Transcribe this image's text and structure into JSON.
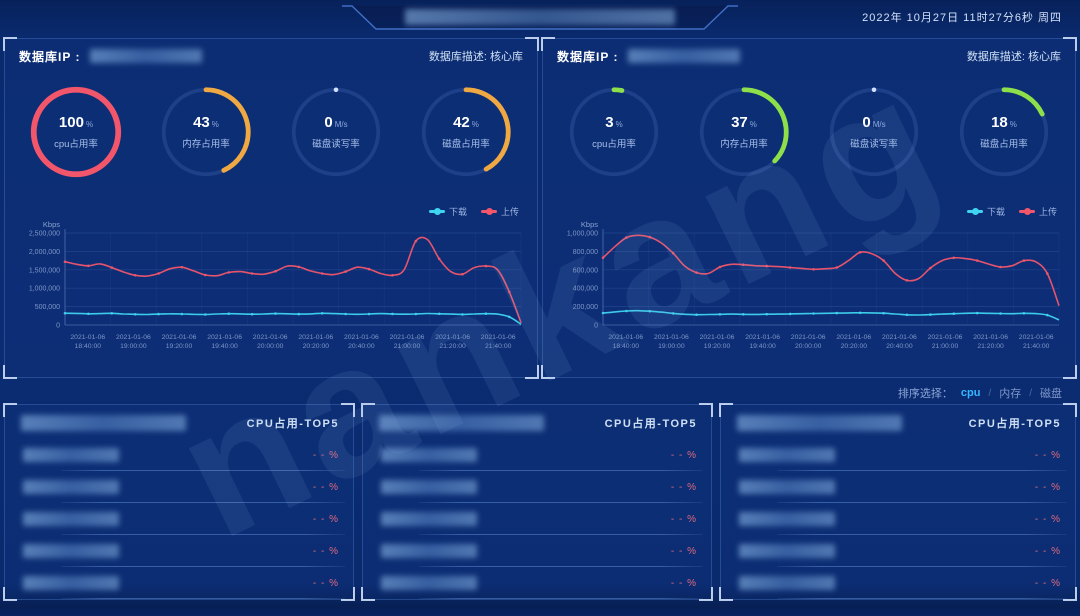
{
  "header": {
    "datetime": "2022年  10月27日  11时27分6秒  周四",
    "title_redacted": ""
  },
  "watermark": "nankang",
  "panels": [
    {
      "ip_label": "数据库IP :",
      "desc_label": "数据库描述: 核心库",
      "gauges": [
        {
          "value": "100",
          "unit": "%",
          "label": "cpu占用率",
          "percent": 100,
          "color": "#f2566b"
        },
        {
          "value": "43",
          "unit": "%",
          "label": "内存占用率",
          "percent": 43,
          "color": "#f0a843"
        },
        {
          "value": "0",
          "unit": "M/s",
          "label": "磁盘读写率",
          "percent": 0,
          "color": "#cfe0ff"
        },
        {
          "value": "42",
          "unit": "%",
          "label": "磁盘占用率",
          "percent": 42,
          "color": "#f0a843"
        }
      ]
    },
    {
      "ip_label": "数据库IP :",
      "desc_label": "数据库描述: 核心库",
      "gauges": [
        {
          "value": "3",
          "unit": "%",
          "label": "cpu占用率",
          "percent": 3,
          "color": "#8de04a"
        },
        {
          "value": "37",
          "unit": "%",
          "label": "内存占用率",
          "percent": 37,
          "color": "#8de04a"
        },
        {
          "value": "0",
          "unit": "M/s",
          "label": "磁盘读写率",
          "percent": 0,
          "color": "#cfe0ff"
        },
        {
          "value": "18",
          "unit": "%",
          "label": "磁盘占用率",
          "percent": 18,
          "color": "#8de04a"
        }
      ]
    }
  ],
  "chart_data": [
    {
      "type": "line",
      "unit_label": "Kbps",
      "ylim": [
        0,
        2500000
      ],
      "yticks": [
        "0",
        "500,000",
        "1,000,000",
        "1,500,000",
        "2,000,000",
        "2,500,000"
      ],
      "x_date": "2021-01-06",
      "x_times": [
        "18:40:00",
        "19:00:00",
        "19:20:00",
        "19:40:00",
        "20:00:00",
        "20:20:00",
        "20:40:00",
        "21:00:00",
        "21:20:00",
        "21:40:00"
      ],
      "legend": [
        {
          "name": "下载",
          "color": "#3fd4f0"
        },
        {
          "name": "上传",
          "color": "#f2566b"
        }
      ],
      "series": [
        {
          "name": "下载",
          "color": "#3fd4f0",
          "values": [
            320000,
            315000,
            305000,
            310000,
            318000,
            300000,
            290000,
            285000,
            295000,
            305000,
            300000,
            292000,
            286000,
            298000,
            308000,
            302000,
            294000,
            300000,
            310000,
            305000,
            296000,
            302000,
            318000,
            310000,
            300000,
            292000,
            300000,
            310000,
            302000,
            294000,
            300000,
            312000,
            304000,
            296000,
            288000,
            300000,
            308000,
            295000,
            220000,
            20000
          ]
        },
        {
          "name": "上传",
          "color": "#f2566b",
          "values": [
            1720000,
            1650000,
            1610000,
            1660000,
            1560000,
            1440000,
            1350000,
            1330000,
            1400000,
            1530000,
            1570000,
            1470000,
            1360000,
            1340000,
            1430000,
            1450000,
            1400000,
            1380000,
            1460000,
            1600000,
            1580000,
            1470000,
            1400000,
            1370000,
            1450000,
            1570000,
            1520000,
            1400000,
            1350000,
            1500000,
            2280000,
            2320000,
            1800000,
            1450000,
            1380000,
            1560000,
            1600000,
            1500000,
            900000,
            60000
          ]
        }
      ]
    },
    {
      "type": "line",
      "unit_label": "Kbps",
      "ylim": [
        0,
        1000000
      ],
      "yticks": [
        "0",
        "200,000",
        "400,000",
        "600,000",
        "800,000",
        "1,000,000"
      ],
      "x_date": "2021-01-06",
      "x_times": [
        "18:40:00",
        "19:00:00",
        "19:20:00",
        "19:40:00",
        "20:00:00",
        "20:20:00",
        "20:40:00",
        "21:00:00",
        "21:20:00",
        "21:40:00"
      ],
      "legend": [
        {
          "name": "下载",
          "color": "#3fd4f0"
        },
        {
          "name": "上传",
          "color": "#f2566b"
        }
      ],
      "series": [
        {
          "name": "下载",
          "color": "#3fd4f0",
          "values": [
            130000,
            142000,
            152000,
            155000,
            150000,
            140000,
            126000,
            116000,
            112000,
            114000,
            116000,
            118000,
            116000,
            115000,
            117000,
            119000,
            121000,
            123000,
            125000,
            127000,
            129000,
            131000,
            133000,
            131000,
            128000,
            120000,
            111000,
            109000,
            113000,
            119000,
            123000,
            127000,
            129000,
            127000,
            125000,
            123000,
            127000,
            124000,
            108000,
            55000
          ]
        },
        {
          "name": "上传",
          "color": "#f2566b",
          "values": [
            730000,
            850000,
            950000,
            975000,
            955000,
            890000,
            780000,
            640000,
            570000,
            560000,
            630000,
            660000,
            655000,
            645000,
            640000,
            635000,
            625000,
            615000,
            605000,
            612000,
            625000,
            700000,
            790000,
            775000,
            700000,
            560000,
            485000,
            505000,
            620000,
            700000,
            730000,
            722000,
            700000,
            662000,
            630000,
            645000,
            700000,
            688000,
            560000,
            210000
          ]
        }
      ]
    }
  ],
  "sort": {
    "label": "排序选择：",
    "separator": "/",
    "options": [
      {
        "label": "cpu",
        "active": true
      },
      {
        "label": "内存",
        "active": false
      },
      {
        "label": "磁盘",
        "active": false
      }
    ]
  },
  "bottom": {
    "panels": [
      {
        "title": "CPU占用-TOP5",
        "rows": [
          {
            "value": "- -",
            "unit": "%"
          },
          {
            "value": "- -",
            "unit": "%"
          },
          {
            "value": "- -",
            "unit": "%"
          },
          {
            "value": "- -",
            "unit": "%"
          },
          {
            "value": "- -",
            "unit": "%"
          }
        ]
      },
      {
        "title": "CPU占用-TOP5",
        "rows": [
          {
            "value": "- -",
            "unit": "%"
          },
          {
            "value": "- -",
            "unit": "%"
          },
          {
            "value": "- -",
            "unit": "%"
          },
          {
            "value": "- -",
            "unit": "%"
          },
          {
            "value": "- -",
            "unit": "%"
          }
        ]
      },
      {
        "title": "CPU占用-TOP5",
        "rows": [
          {
            "value": "- -",
            "unit": "%"
          },
          {
            "value": "- -",
            "unit": "%"
          },
          {
            "value": "- -",
            "unit": "%"
          },
          {
            "value": "- -",
            "unit": "%"
          },
          {
            "value": "- -",
            "unit": "%"
          }
        ]
      }
    ]
  }
}
